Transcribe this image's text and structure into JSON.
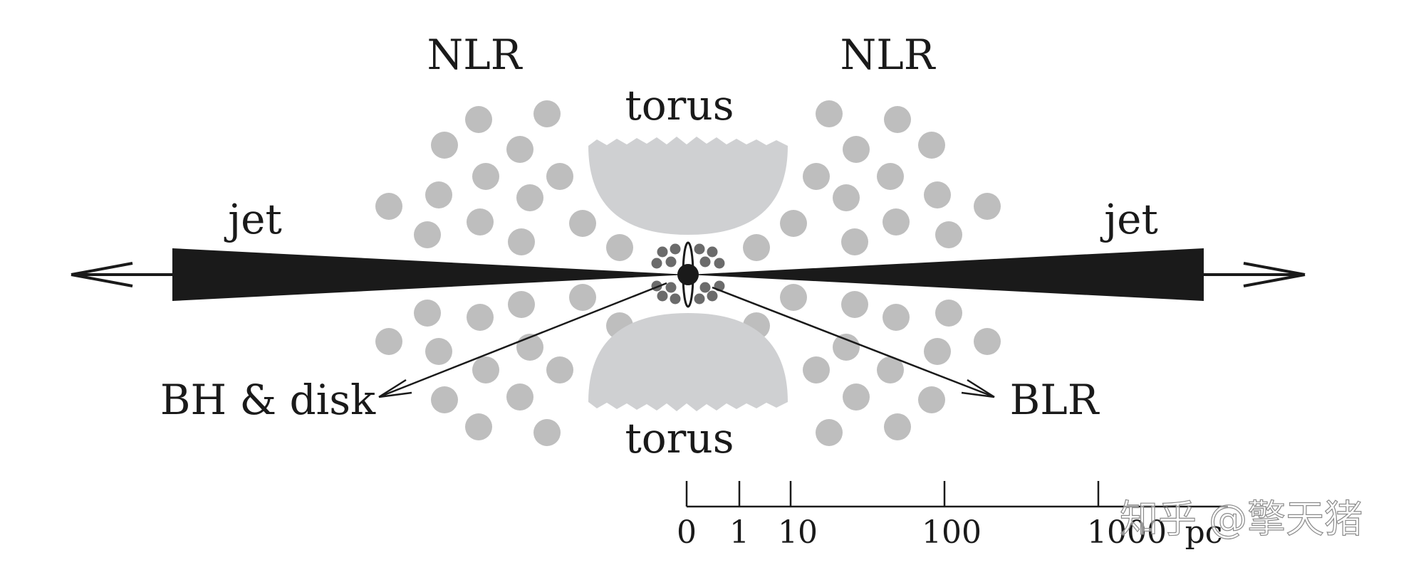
{
  "labels": {
    "nlr_left": "NLR",
    "nlr_right": "NLR",
    "torus_top": "torus",
    "torus_bottom": "torus",
    "jet_left": "jet",
    "jet_right": "jet",
    "bh_disk": "BH & disk",
    "blr": "BLR"
  },
  "scale": {
    "ticks": [
      "0",
      "1",
      "10",
      "100",
      "1000"
    ],
    "unit": "pc"
  },
  "watermark": "知乎 @擎天猪",
  "colors": {
    "ink": "#1a1a1a",
    "cloud": "#bebebe",
    "torus": "#cfd0d2",
    "blr_cloud": "#6b6b6b"
  }
}
